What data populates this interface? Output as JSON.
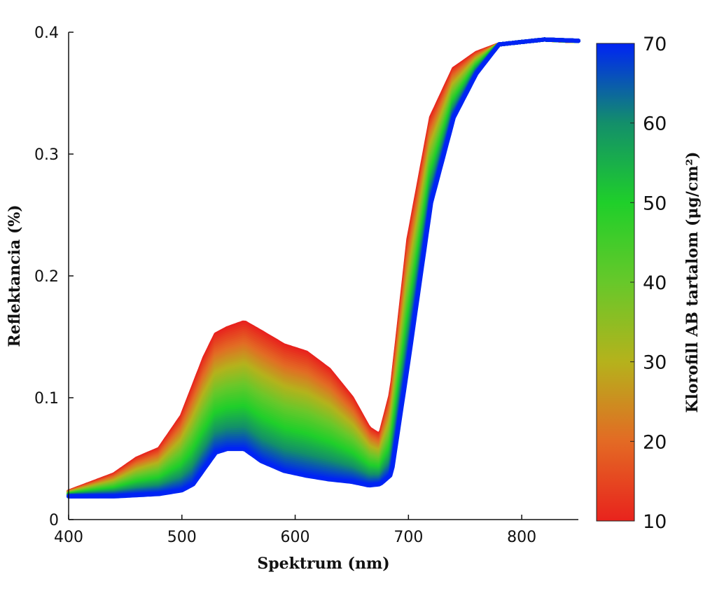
{
  "chart_data": {
    "type": "area",
    "xlabel": "Spektrum (nm)",
    "ylabel": "Reflektancia (%)",
    "xlim": [
      400,
      850
    ],
    "ylim": [
      0,
      0.4
    ],
    "xticks": [
      "400",
      "500",
      "600",
      "700",
      "800"
    ],
    "yticks": [
      "0",
      "0.1",
      "0.2",
      "0.3",
      "0.4"
    ],
    "grid": false,
    "colorbar": {
      "label": "Klorofill AB tartalom (μg/cm²)",
      "range": [
        10,
        70
      ],
      "ticks": [
        "10",
        "20",
        "30",
        "40",
        "50",
        "60",
        "70"
      ],
      "colormap": [
        "#e8231d",
        "#e36a24",
        "#b5b21c",
        "#67c82a",
        "#1fcf2a",
        "#138f6a",
        "#0024f4"
      ]
    },
    "series": [
      {
        "chlorophyll": 10,
        "color": "#e8231d",
        "x": [
          400,
          420,
          440,
          460,
          480,
          500,
          520,
          530,
          540,
          555,
          570,
          590,
          610,
          630,
          650,
          665,
          675,
          685,
          700,
          720,
          740,
          760,
          780,
          800,
          820,
          840,
          850
        ],
        "y": [
          0.023,
          0.03,
          0.037,
          0.05,
          0.058,
          0.085,
          0.133,
          0.152,
          0.157,
          0.162,
          0.154,
          0.143,
          0.137,
          0.123,
          0.1,
          0.075,
          0.069,
          0.105,
          0.23,
          0.33,
          0.37,
          0.383,
          0.39,
          0.392,
          0.394,
          0.393,
          0.393
        ]
      },
      {
        "chlorophyll": 70,
        "color": "#0024f4",
        "x": [
          400,
          420,
          440,
          460,
          480,
          500,
          510,
          520,
          530,
          540,
          555,
          570,
          590,
          610,
          630,
          650,
          665,
          675,
          685,
          700,
          720,
          740,
          760,
          780,
          800,
          820,
          850
        ],
        "y": [
          0.019,
          0.019,
          0.019,
          0.02,
          0.021,
          0.024,
          0.029,
          0.042,
          0.055,
          0.058,
          0.058,
          0.048,
          0.04,
          0.036,
          0.033,
          0.031,
          0.028,
          0.029,
          0.037,
          0.13,
          0.26,
          0.33,
          0.366,
          0.39,
          0.392,
          0.394,
          0.393
        ]
      }
    ]
  }
}
